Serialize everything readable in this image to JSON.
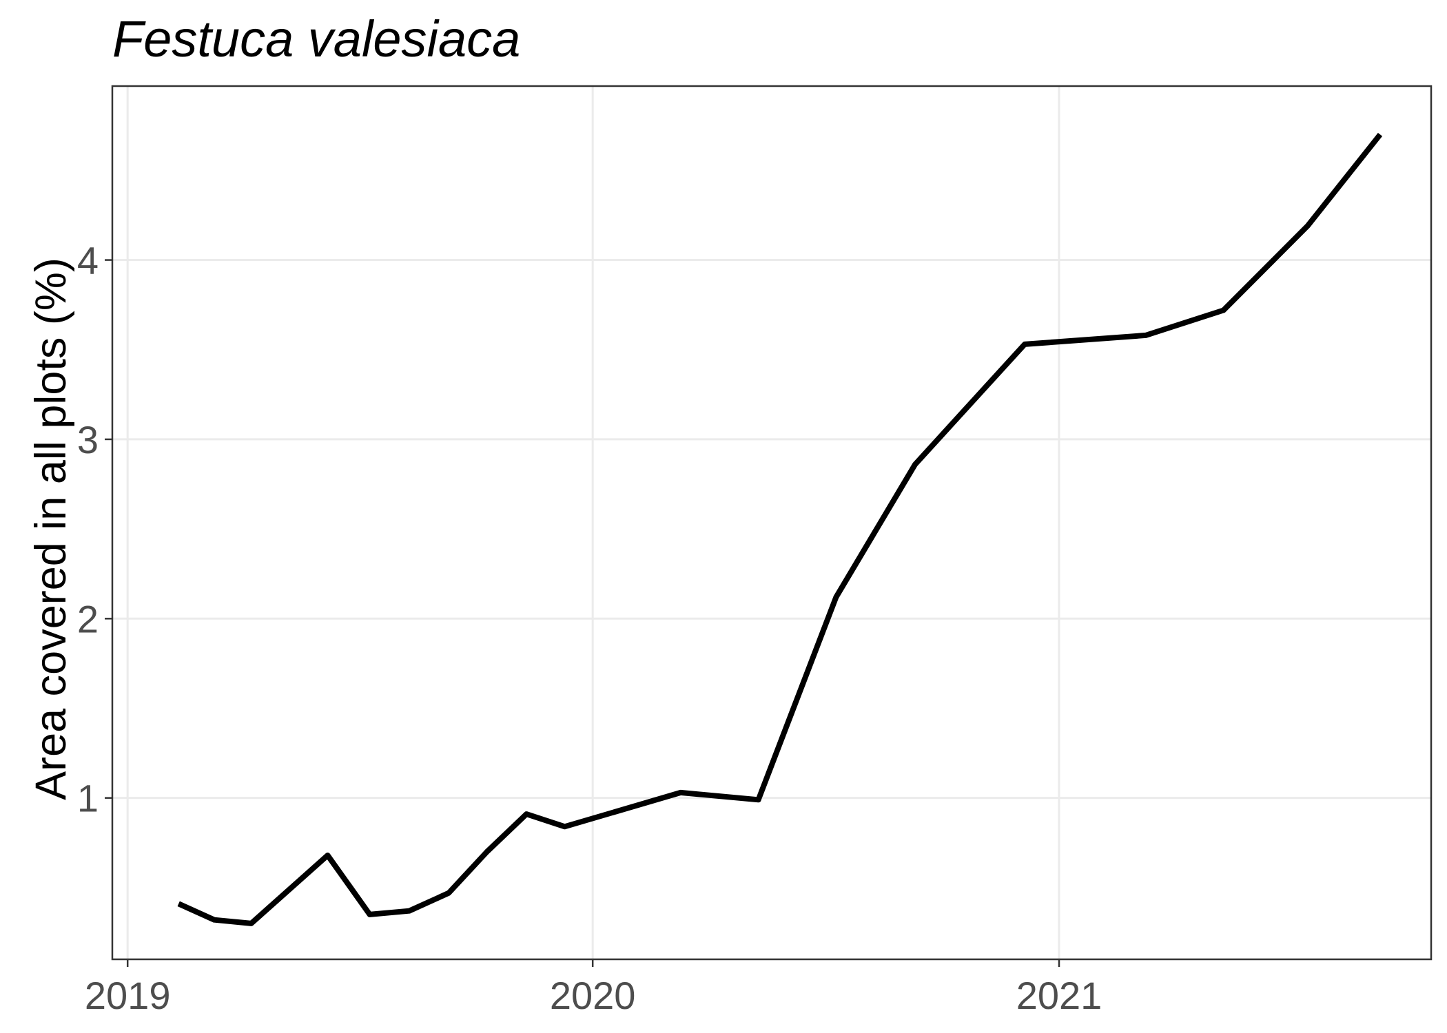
{
  "chart_data": {
    "type": "line",
    "title": "Festuca valesiaca",
    "xlabel": "",
    "ylabel": "Area covered in all plots (%)",
    "x_ticks": [
      "2019",
      "2020",
      "2021"
    ],
    "y_ticks": [
      1,
      2,
      3,
      4
    ],
    "x_range": [
      "2018-12-20",
      "2021-10-20"
    ],
    "ylim": [
      0.1,
      4.97
    ],
    "grid": true,
    "legend": "none",
    "line_color": "#000000",
    "series": [
      {
        "x": [
          "2019-02-10",
          "2019-03-10",
          "2019-04-08",
          "2019-06-07",
          "2019-07-10",
          "2019-08-10",
          "2019-09-10",
          "2019-10-10",
          "2019-11-10",
          "2019-12-10",
          "2020-03-10",
          "2020-05-10",
          "2020-07-10",
          "2020-09-10",
          "2020-12-05",
          "2021-03-10",
          "2021-05-10",
          "2021-07-15",
          "2021-09-10"
        ],
        "values": [
          0.41,
          0.32,
          0.3,
          0.68,
          0.35,
          0.37,
          0.47,
          0.7,
          0.91,
          0.84,
          1.03,
          0.99,
          2.12,
          2.86,
          3.53,
          3.58,
          3.72,
          4.19,
          4.7
        ]
      }
    ]
  }
}
